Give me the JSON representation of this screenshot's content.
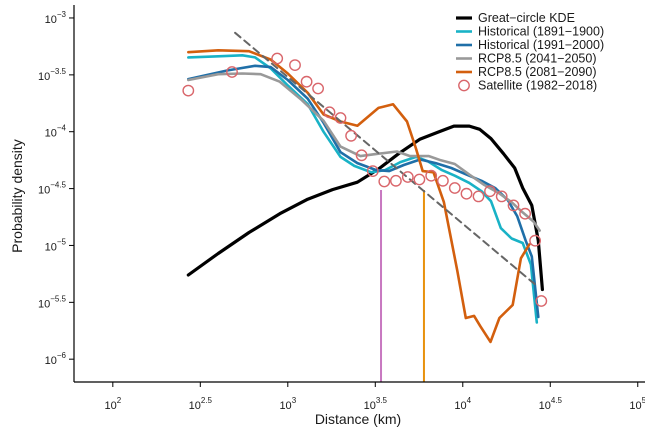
{
  "chart_data": {
    "type": "line",
    "xlabel": "Distance (km)",
    "ylabel": "Probability density",
    "x_scale": "log10",
    "y_scale": "log10",
    "xlim": [
      60,
      110000
    ],
    "ylim": [
      6.3e-07,
      0.0013
    ],
    "x_ticks": [
      {
        "value": 100,
        "label_base": "10",
        "label_exp": "2"
      },
      {
        "value": 316.2,
        "label_base": "10",
        "label_exp": "2.5"
      },
      {
        "value": 1000,
        "label_base": "10",
        "label_exp": "3"
      },
      {
        "value": 3162,
        "label_base": "10",
        "label_exp": "3.5"
      },
      {
        "value": 10000,
        "label_base": "10",
        "label_exp": "4"
      },
      {
        "value": 31623,
        "label_base": "10",
        "label_exp": "4.5"
      },
      {
        "value": 100000,
        "label_base": "10",
        "label_exp": "5"
      }
    ],
    "y_ticks": [
      {
        "value": 0.001,
        "label_base": "10",
        "label_exp": "−3"
      },
      {
        "value": 0.000316,
        "label_base": "10",
        "label_exp": "−3.5"
      },
      {
        "value": 0.0001,
        "label_base": "10",
        "label_exp": "−4"
      },
      {
        "value": 3.16e-05,
        "label_base": "10",
        "label_exp": "−4.5"
      },
      {
        "value": 1e-05,
        "label_base": "10",
        "label_exp": "−5"
      },
      {
        "value": 3.16e-06,
        "label_base": "10",
        "label_exp": "−5.5"
      },
      {
        "value": 1e-06,
        "label_base": "10",
        "label_exp": "−6"
      }
    ],
    "legend_position": "top-right",
    "series": [
      {
        "name": "Great−circle KDE",
        "kind": "line",
        "color": "#000000",
        "width": 3.2,
        "points": [
          [
            270,
            5.5e-06
          ],
          [
            400,
            8.5e-06
          ],
          [
            600,
            1.3e-05
          ],
          [
            900,
            1.9e-05
          ],
          [
            1300,
            2.55e-05
          ],
          [
            1800,
            3.1e-05
          ],
          [
            2500,
            3.6e-05
          ],
          [
            3300,
            4.7e-05
          ],
          [
            4300,
            6.4e-05
          ],
          [
            5700,
            8.6e-05
          ],
          [
            7200,
            9.9e-05
          ],
          [
            8900,
            0.000112
          ],
          [
            10900,
            0.000112
          ],
          [
            12500,
            0.000105
          ],
          [
            14500,
            8.7e-05
          ],
          [
            17100,
            6.4e-05
          ],
          [
            19800,
            4.8e-05
          ],
          [
            22000,
            3.2e-05
          ],
          [
            24800,
            2.25e-05
          ],
          [
            27000,
            1.1e-05
          ],
          [
            28500,
            4.1e-06
          ]
        ]
      },
      {
        "name": "Historical (1891−1900)",
        "kind": "line",
        "color": "#19b2c6",
        "width": 2.6,
        "points": [
          [
            270,
            0.00045
          ],
          [
            400,
            0.00046
          ],
          [
            550,
            0.00047
          ],
          [
            650,
            0.00045
          ],
          [
            800,
            0.00036
          ],
          [
            1000,
            0.000255
          ],
          [
            1300,
            0.000175
          ],
          [
            1600,
            0.0001
          ],
          [
            2000,
            6e-05
          ],
          [
            2400,
            5e-05
          ],
          [
            3000,
            4.4e-05
          ],
          [
            3600,
            4.6e-05
          ],
          [
            4400,
            5.4e-05
          ],
          [
            5400,
            6e-05
          ],
          [
            6300,
            5.5e-05
          ],
          [
            7600,
            4.6e-05
          ],
          [
            9000,
            4.1e-05
          ],
          [
            10900,
            3.55e-05
          ],
          [
            12800,
            3e-05
          ],
          [
            14500,
            2.45e-05
          ],
          [
            16500,
            1.42e-05
          ],
          [
            19000,
            1.15e-05
          ],
          [
            22000,
            1.05e-05
          ],
          [
            24500,
            6.8e-06
          ],
          [
            26500,
            2.1e-06
          ]
        ]
      },
      {
        "name": "Historical (1991−2000)",
        "kind": "line",
        "color": "#1f6fa8",
        "width": 2.6,
        "points": [
          [
            270,
            0.00029
          ],
          [
            450,
            0.000345
          ],
          [
            650,
            0.00038
          ],
          [
            800,
            0.00037
          ],
          [
            1000,
            0.000285
          ],
          [
            1300,
            0.000195
          ],
          [
            1600,
            0.00012
          ],
          [
            2000,
            6.6e-05
          ],
          [
            2500,
            5.3e-05
          ],
          [
            3200,
            4.6e-05
          ],
          [
            3800,
            4.5e-05
          ],
          [
            4600,
            5.1e-05
          ],
          [
            5700,
            5.7e-05
          ],
          [
            7000,
            5.3e-05
          ],
          [
            8600,
            4.8e-05
          ],
          [
            10500,
            4.2e-05
          ],
          [
            12800,
            3.7e-05
          ],
          [
            15300,
            3.2e-05
          ],
          [
            18100,
            2.5e-05
          ],
          [
            20500,
            1.8e-05
          ],
          [
            22900,
            1.1e-05
          ],
          [
            24800,
            8e-06
          ],
          [
            27000,
            2.35e-06
          ]
        ]
      },
      {
        "name": "RCP8.5 (2041−2050)",
        "kind": "line",
        "color": "#999999",
        "width": 2.6,
        "points": [
          [
            270,
            0.000285
          ],
          [
            400,
            0.00032
          ],
          [
            550,
            0.000325
          ],
          [
            700,
            0.00032
          ],
          [
            900,
            0.000275
          ],
          [
            1200,
            0.00019
          ],
          [
            1600,
            0.000125
          ],
          [
            2000,
            7.4e-05
          ],
          [
            2600,
            6.1e-05
          ],
          [
            3300,
            6.4e-05
          ],
          [
            4200,
            6.7e-05
          ],
          [
            5000,
            6.1e-05
          ],
          [
            6400,
            6.1e-05
          ],
          [
            7500,
            5.6e-05
          ],
          [
            9000,
            5.2e-05
          ],
          [
            10900,
            4.2e-05
          ],
          [
            13300,
            3.4e-05
          ],
          [
            16000,
            2.9e-05
          ],
          [
            19000,
            2.4e-05
          ],
          [
            22000,
            1.95e-05
          ],
          [
            25400,
            1.62e-05
          ],
          [
            27500,
            1.35e-05
          ]
        ]
      },
      {
        "name": "RCP8.5 (2081−2090)",
        "kind": "line",
        "color": "#d35f0e",
        "width": 2.6,
        "points": [
          [
            270,
            0.0005
          ],
          [
            400,
            0.00052
          ],
          [
            600,
            0.00051
          ],
          [
            800,
            0.00043
          ],
          [
            1000,
            0.000325
          ],
          [
            1300,
            0.00022
          ],
          [
            1600,
            0.000142
          ],
          [
            2000,
            0.000123
          ],
          [
            2500,
            0.000113
          ],
          [
            3300,
            0.000162
          ],
          [
            4000,
            0.000174
          ],
          [
            4800,
            0.000123
          ],
          [
            5400,
            7.1e-05
          ],
          [
            5900,
            4.5e-05
          ],
          [
            6800,
            4.4e-05
          ],
          [
            7800,
            2.4e-05
          ],
          [
            9300,
            6e-06
          ],
          [
            10400,
            2.3e-06
          ],
          [
            11600,
            2.4e-06
          ],
          [
            12600,
            1.95e-06
          ],
          [
            14400,
            1.42e-06
          ],
          [
            16200,
            2.3e-06
          ],
          [
            19300,
            3e-06
          ],
          [
            21500,
            7.7e-06
          ],
          [
            24000,
            1.02e-05
          ]
        ]
      },
      {
        "name": "Satellite (1982−2018)",
        "kind": "scatter",
        "color": "#d9666b",
        "points": [
          [
            270,
            0.00023
          ],
          [
            480,
            0.000335
          ],
          [
            870,
            0.00044
          ],
          [
            1100,
            0.000385
          ],
          [
            1280,
            0.000275
          ],
          [
            1490,
            0.00024
          ],
          [
            1730,
            0.000148
          ],
          [
            2000,
            0.000132
          ],
          [
            2300,
            9.2e-05
          ],
          [
            2640,
            6.2e-05
          ],
          [
            3060,
            4.5e-05
          ],
          [
            3560,
            3.65e-05
          ],
          [
            4150,
            3.7e-05
          ],
          [
            4850,
            4e-05
          ],
          [
            5650,
            3.8e-05
          ],
          [
            6600,
            4.1e-05
          ],
          [
            7700,
            3.7e-05
          ],
          [
            9000,
            3.2e-05
          ],
          [
            10500,
            2.85e-05
          ],
          [
            12300,
            2.7e-05
          ],
          [
            14300,
            3e-05
          ],
          [
            16700,
            2.7e-05
          ],
          [
            19500,
            2.25e-05
          ],
          [
            22700,
            1.9e-05
          ],
          [
            25900,
            1.1e-05
          ],
          [
            28100,
            3.25e-06
          ]
        ]
      },
      {
        "name": "",
        "kind": "line",
        "color": "#666666",
        "width": 2.0,
        "dashed": true,
        "points": [
          [
            500,
            0.00074
          ],
          [
            27000,
            4.3e-06
          ]
        ]
      }
    ],
    "vertical_markers": [
      {
        "x": 3410,
        "color": "#c878c0"
      },
      {
        "x": 6000,
        "color": "#e8920e"
      }
    ]
  }
}
